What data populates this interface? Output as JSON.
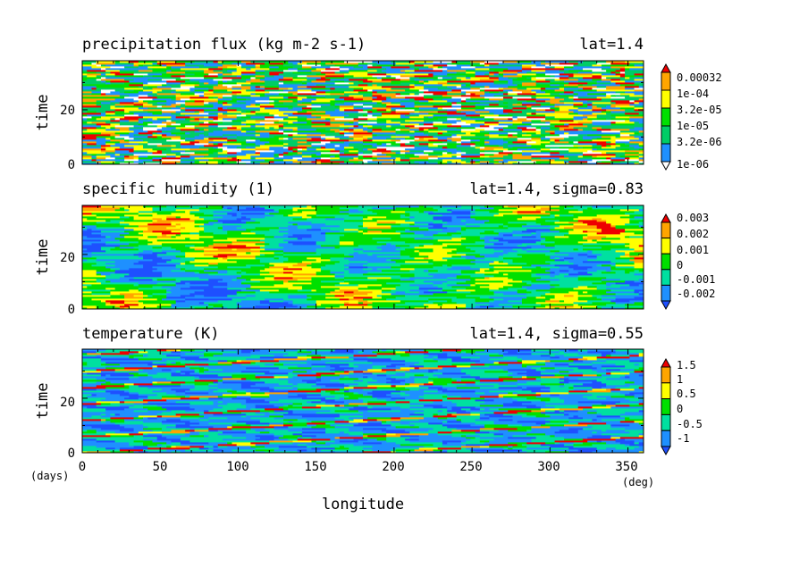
{
  "chart_data": [
    {
      "type": "heatmap",
      "title": "precipitation flux (kg m-2 s-1)",
      "subtitle": "lat=1.4",
      "ylabel": "time",
      "xlim": [
        0,
        360
      ],
      "ylim": [
        0,
        38
      ],
      "yticks": [
        "0",
        "20"
      ],
      "colorbar": {
        "levels": [
          "1e-06",
          "3.2e-06",
          "1e-05",
          "3.2e-05",
          "1e-04",
          "0.00032"
        ],
        "colors": [
          "#ffffff",
          "#1e90ff",
          "#00cd66",
          "#00e000",
          "#ffff00",
          "#ffa500",
          "#ee0000"
        ]
      },
      "field": {
        "pattern": "noisy",
        "palette": [
          "#ffffff",
          "#1e90ff",
          "#00cd66",
          "#00e000",
          "#ffff00",
          "#ffa500",
          "#ee0000"
        ],
        "weights": [
          0.08,
          0.22,
          0.22,
          0.14,
          0.14,
          0.1,
          0.1
        ],
        "seed": 7
      }
    },
    {
      "type": "heatmap",
      "title": "specific humidity (1)",
      "subtitle": "lat=1.4, sigma=0.83",
      "ylabel": "time",
      "xlim": [
        0,
        360
      ],
      "ylim": [
        0,
        38
      ],
      "yticks": [
        "0",
        "20"
      ],
      "colorbar": {
        "levels": [
          "-0.002",
          "-0.001",
          "0",
          "0.001",
          "0.002",
          "0.003"
        ],
        "colors": [
          "#1e50ff",
          "#1e90ff",
          "#00e0a0",
          "#00e000",
          "#ffff00",
          "#ffa500",
          "#ee0000"
        ]
      },
      "field": {
        "pattern": "smooth",
        "palette": [
          "#1e50ff",
          "#1e90ff",
          "#00e0a0",
          "#00e000",
          "#ffff00",
          "#ffa500",
          "#ee0000"
        ],
        "thresholds": [
          -0.9,
          -0.45,
          0.0,
          0.5,
          0.95,
          1.25
        ],
        "seed": 19
      }
    },
    {
      "type": "heatmap",
      "title": "temperature (K)",
      "subtitle": "lat=1.4, sigma=0.55",
      "ylabel": "time",
      "xlabel": "longitude",
      "xlim": [
        0,
        360
      ],
      "ylim": [
        0,
        38
      ],
      "xticks": [
        "0",
        "50",
        "100",
        "150",
        "200",
        "250",
        "300",
        "350"
      ],
      "yticks": [
        "0",
        "20"
      ],
      "x_unit": "(deg)",
      "y_unit": "(days)",
      "colorbar": {
        "levels": [
          "-1",
          "-0.5",
          "0",
          "0.5",
          "1",
          "1.5"
        ],
        "colors": [
          "#1e50ff",
          "#1e90ff",
          "#00e0a0",
          "#00e000",
          "#ffff00",
          "#ffa500",
          "#ee0000"
        ]
      },
      "field": {
        "pattern": "waves",
        "palette": [
          "#1e50ff",
          "#1e90ff",
          "#00e0a0",
          "#00e000",
          "#ffff00",
          "#ffa500",
          "#ee0000"
        ],
        "thresholds": [
          -0.9,
          -0.45,
          0.0,
          0.45,
          0.9,
          1.3
        ],
        "seed": 31,
        "wave_speed_deg_per_day": 30
      }
    }
  ]
}
